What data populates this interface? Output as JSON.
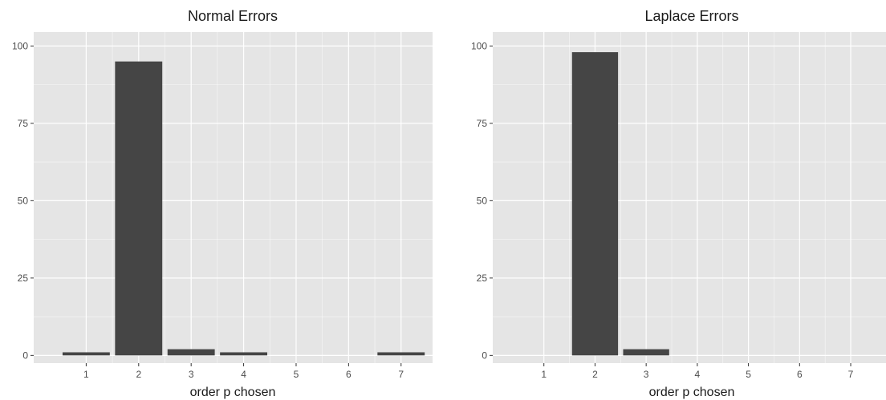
{
  "chart_data": [
    {
      "type": "bar",
      "title": "Normal Errors",
      "xlabel": "order p chosen",
      "ylabel": "",
      "categories": [
        "1",
        "2",
        "3",
        "4",
        "5",
        "6",
        "7"
      ],
      "values": [
        1,
        95,
        2,
        1,
        0,
        0,
        1
      ],
      "ylim": [
        -2.5,
        104.5
      ],
      "xlim": [
        0.0,
        7.6
      ],
      "yticks": [
        0,
        25,
        50,
        75,
        100
      ],
      "yticks_minor": [
        12.5,
        37.5,
        62.5,
        87.5
      ],
      "xticks_minor": [
        1.5,
        2.5,
        3.5,
        4.5,
        5.5,
        6.5
      ],
      "grid": true,
      "bar_color": "#454545",
      "panel_background": "#e5e5e5",
      "grid_color": "#ffffff"
    },
    {
      "type": "bar",
      "title": "Laplace Errors",
      "xlabel": "order p chosen",
      "ylabel": "",
      "categories": [
        "1",
        "2",
        "3",
        "4",
        "5",
        "6",
        "7"
      ],
      "values": [
        0,
        98,
        2,
        0,
        0,
        0,
        0
      ],
      "ylim": [
        -2.5,
        104.5
      ],
      "xlim": [
        0.0,
        7.8
      ],
      "yticks": [
        0,
        25,
        50,
        75,
        100
      ],
      "yticks_minor": [
        12.5,
        37.5,
        62.5,
        87.5
      ],
      "xticks_minor": [
        1.5,
        2.5,
        3.5,
        4.5,
        5.5,
        6.5
      ],
      "grid": true,
      "bar_color": "#454545",
      "panel_background": "#e5e5e5",
      "grid_color": "#ffffff"
    }
  ]
}
